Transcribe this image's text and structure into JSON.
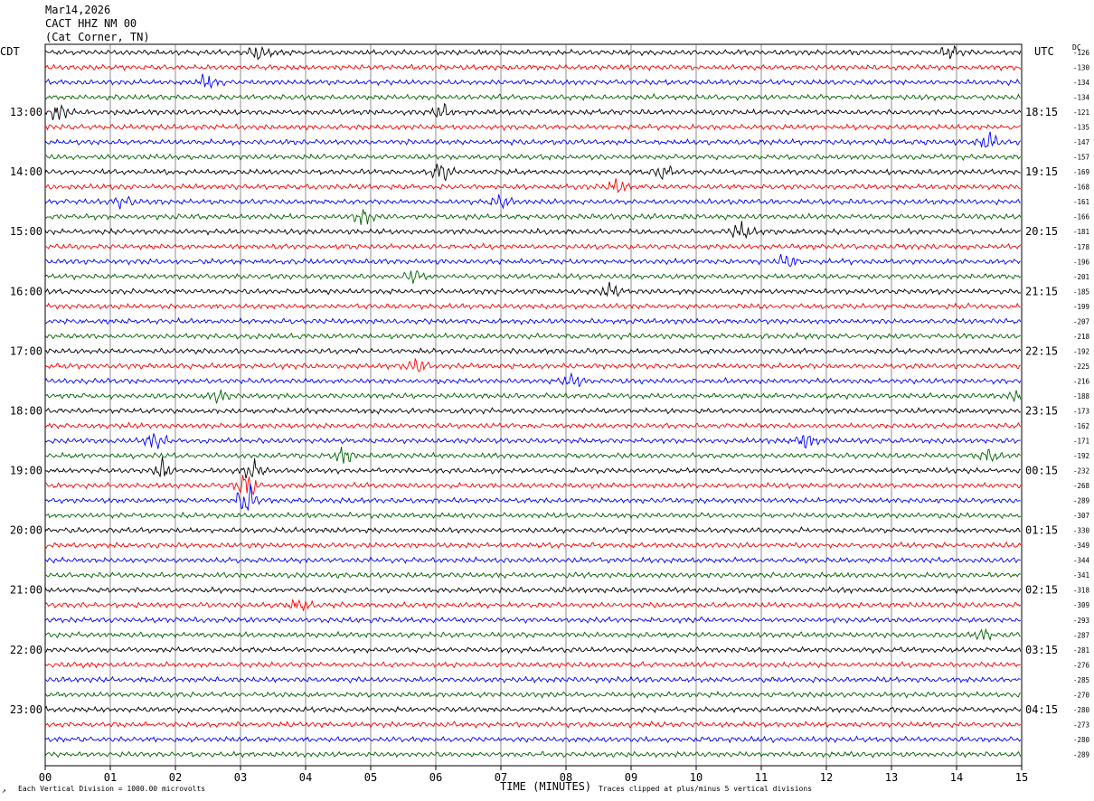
{
  "header": {
    "date": "Mar14,2026",
    "station": "CACT HHZ NM 00",
    "location": "(Cat Corner, TN)"
  },
  "left_tz": "CDT",
  "right_tz": "UTC",
  "dc_label": "DC",
  "footer": {
    "scale_note": "Each Vertical Division = 1000.00 microvolts",
    "clip_note": "Traces clipped at plus/minus 5 vertical divisions",
    "corner_mark": "↗"
  },
  "colors": {
    "trace_cycle": [
      "#000000",
      "#ff0000",
      "#0000ff",
      "#006400"
    ],
    "grid": "#000000"
  },
  "chart_data": {
    "type": "line",
    "title": "",
    "xlabel": "TIME (MINUTES)",
    "ylabel": "",
    "xlim": [
      0,
      15
    ],
    "x_ticks": [
      "00",
      "01",
      "02",
      "03",
      "04",
      "05",
      "06",
      "07",
      "08",
      "09",
      "10",
      "11",
      "12",
      "13",
      "14",
      "15"
    ],
    "trace_count": 48,
    "minutes_per_trace": 15,
    "left_hour_labels": [
      "13:00",
      "14:00",
      "15:00",
      "16:00",
      "17:00",
      "18:00",
      "19:00",
      "20:00",
      "21:00",
      "22:00",
      "23:00"
    ],
    "right_hour_labels": [
      "18:15",
      "19:15",
      "20:15",
      "21:15",
      "22:15",
      "23:15",
      "00:15",
      "01:15",
      "02:15",
      "03:15",
      "04:15"
    ],
    "dc_offsets": [
      -126,
      -130,
      -134,
      -134,
      -121,
      -135,
      -147,
      -157,
      -169,
      -168,
      -161,
      -166,
      -181,
      -178,
      -196,
      -201,
      -185,
      -199,
      -207,
      -218,
      -192,
      -225,
      -216,
      -188,
      -173,
      -162,
      -171,
      -192,
      -232,
      -268,
      -289,
      -307,
      -330,
      -349,
      -344,
      -341,
      -318,
      -309,
      -293,
      -287,
      -281,
      -276,
      -285,
      -270,
      -280,
      -273,
      -280,
      -289
    ],
    "events": [
      {
        "trace": 0,
        "minute": 3.3,
        "amplitude": 1.9
      },
      {
        "trace": 0,
        "minute": 13.9,
        "amplitude": 1.5
      },
      {
        "trace": 2,
        "minute": 2.5,
        "amplitude": 1.6
      },
      {
        "trace": 4,
        "minute": 0.2,
        "amplitude": 1.8
      },
      {
        "trace": 4,
        "minute": 6.1,
        "amplitude": 1.5
      },
      {
        "trace": 6,
        "minute": 14.5,
        "amplitude": 2.0
      },
      {
        "trace": 8,
        "minute": 6.1,
        "amplitude": 2.6
      },
      {
        "trace": 8,
        "minute": 9.5,
        "amplitude": 1.7
      },
      {
        "trace": 9,
        "minute": 8.8,
        "amplitude": 1.6
      },
      {
        "trace": 10,
        "minute": 1.2,
        "amplitude": 1.5
      },
      {
        "trace": 10,
        "minute": 7.0,
        "amplitude": 1.6
      },
      {
        "trace": 11,
        "minute": 4.9,
        "amplitude": 1.6
      },
      {
        "trace": 12,
        "minute": 10.7,
        "amplitude": 1.9
      },
      {
        "trace": 14,
        "minute": 11.4,
        "amplitude": 1.6
      },
      {
        "trace": 15,
        "minute": 5.7,
        "amplitude": 1.6
      },
      {
        "trace": 16,
        "minute": 8.7,
        "amplitude": 1.6
      },
      {
        "trace": 21,
        "minute": 5.7,
        "amplitude": 1.5
      },
      {
        "trace": 22,
        "minute": 8.1,
        "amplitude": 1.8
      },
      {
        "trace": 23,
        "minute": 2.7,
        "amplitude": 1.7
      },
      {
        "trace": 23,
        "minute": 15.0,
        "amplitude": 2.0
      },
      {
        "trace": 26,
        "minute": 1.7,
        "amplitude": 1.9
      },
      {
        "trace": 26,
        "minute": 11.7,
        "amplitude": 2.0
      },
      {
        "trace": 27,
        "minute": 4.6,
        "amplitude": 1.6
      },
      {
        "trace": 27,
        "minute": 14.5,
        "amplitude": 1.8
      },
      {
        "trace": 28,
        "minute": 1.8,
        "amplitude": 2.0
      },
      {
        "trace": 28,
        "minute": 3.2,
        "amplitude": 2.2
      },
      {
        "trace": 29,
        "minute": 3.1,
        "amplitude": 3.0
      },
      {
        "trace": 30,
        "minute": 3.1,
        "amplitude": 3.6
      },
      {
        "trace": 37,
        "minute": 3.9,
        "amplitude": 1.5
      },
      {
        "trace": 39,
        "minute": 14.4,
        "amplitude": 1.4
      }
    ],
    "grid": true
  }
}
